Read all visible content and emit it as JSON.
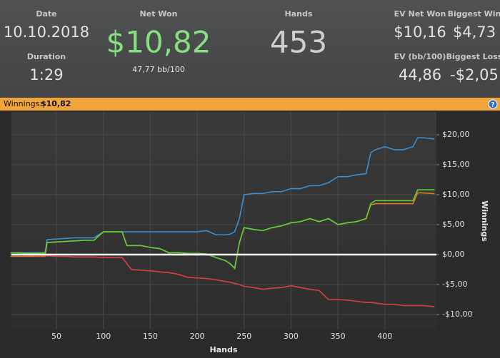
{
  "header": {
    "date": {
      "label": "Date",
      "value": "10.10.2018"
    },
    "duration": {
      "label": "Duration",
      "value": "1:29"
    },
    "net_won": {
      "label": "Net Won",
      "value": "$10,82",
      "sub": "47,77 bb/100"
    },
    "hands": {
      "label": "Hands",
      "value": "453"
    },
    "ev_net_won": {
      "label": "EV Net Won",
      "value": "$10,16"
    },
    "biggest_win": {
      "label": "Biggest Win",
      "value": "$4,73"
    },
    "ev_bb": {
      "label": "EV (bb/100)",
      "value": "44,86"
    },
    "biggest_loss": {
      "label": "Biggest Loss",
      "value": "-$2,05"
    }
  },
  "bar": {
    "label": "Winnings:",
    "value": "$10,82",
    "help": "?"
  },
  "chart_data": {
    "type": "line",
    "xlabel": "Hands",
    "ylabel": "Winnings",
    "xlim": [
      2,
      455
    ],
    "xticks": [
      50,
      100,
      150,
      200,
      250,
      300,
      350,
      400
    ],
    "ylim": [
      -12.5,
      23.8
    ],
    "yticks": [
      {
        "value": 20,
        "label": "$20,00"
      },
      {
        "value": 15,
        "label": "$15,00"
      },
      {
        "value": 10,
        "label": "$10,00"
      },
      {
        "value": 5,
        "label": "$5,00"
      },
      {
        "value": 0,
        "label": "$0,00"
      },
      {
        "value": -5,
        "label": "-$5,00"
      },
      {
        "value": -10,
        "label": "-$10,00"
      }
    ],
    "grid": true,
    "x": [
      1,
      10,
      20,
      30,
      38,
      40,
      50,
      60,
      70,
      80,
      90,
      100,
      110,
      120,
      125,
      130,
      140,
      150,
      160,
      170,
      180,
      190,
      200,
      210,
      220,
      230,
      235,
      240,
      245,
      250,
      260,
      270,
      280,
      290,
      300,
      310,
      320,
      330,
      340,
      350,
      360,
      370,
      380,
      385,
      390,
      400,
      410,
      420,
      430,
      435,
      440,
      453
    ],
    "series": [
      {
        "color": "#3d8fd0",
        "values": [
          0.3,
          0.3,
          0.3,
          0.3,
          0.3,
          2.5,
          2.6,
          2.7,
          2.8,
          2.8,
          2.8,
          3.8,
          3.8,
          3.8,
          3.8,
          3.8,
          3.8,
          3.8,
          3.8,
          3.8,
          3.8,
          3.8,
          3.8,
          4.0,
          3.3,
          3.3,
          3.4,
          3.8,
          6.0,
          10.0,
          10.2,
          10.2,
          10.5,
          10.5,
          11.0,
          11.0,
          11.5,
          11.5,
          12.0,
          13.0,
          13.0,
          13.3,
          13.5,
          17.0,
          17.5,
          18.0,
          17.5,
          17.5,
          18.0,
          19.5,
          19.5,
          19.3
        ]
      },
      {
        "color": "#e07b2a",
        "values": [
          -0.3,
          -0.3,
          -0.3,
          -0.3,
          -0.3,
          2.0,
          2.1,
          2.2,
          2.3,
          2.4,
          2.4,
          3.8,
          3.8,
          3.8,
          1.5,
          1.5,
          1.5,
          1.2,
          1.0,
          0.3,
          0.3,
          0.2,
          0.2,
          0.1,
          -0.5,
          -1.0,
          -1.5,
          -2.3,
          2.0,
          4.5,
          4.2,
          4.0,
          4.5,
          4.8,
          5.3,
          5.5,
          6.0,
          5.5,
          6.0,
          5.0,
          5.3,
          5.5,
          6.0,
          8.3,
          8.5,
          8.5,
          8.5,
          8.5,
          8.5,
          10.3,
          10.3,
          10.16
        ]
      },
      {
        "color": "#5fd03a",
        "values": [
          0.3,
          0.3,
          0.2,
          0.2,
          0.3,
          2.0,
          2.1,
          2.2,
          2.3,
          2.4,
          2.4,
          3.8,
          3.8,
          3.8,
          1.5,
          1.5,
          1.5,
          1.2,
          1.0,
          0.3,
          0.3,
          0.2,
          0.2,
          0.1,
          -0.5,
          -1.0,
          -1.5,
          -2.3,
          2.0,
          4.5,
          4.2,
          4.0,
          4.5,
          4.8,
          5.3,
          5.5,
          6.0,
          5.5,
          6.0,
          5.0,
          5.3,
          5.5,
          6.0,
          8.5,
          9.0,
          9.0,
          9.0,
          9.0,
          9.0,
          10.8,
          10.8,
          10.82
        ]
      },
      {
        "color": "#d9413e",
        "values": [
          0,
          0,
          -0.1,
          -0.2,
          -0.2,
          -0.2,
          -0.3,
          -0.3,
          -0.4,
          -0.4,
          -0.4,
          -0.5,
          -0.5,
          -0.5,
          -1.5,
          -2.5,
          -2.6,
          -2.7,
          -2.9,
          -3.0,
          -3.3,
          -3.8,
          -3.9,
          -4.0,
          -4.2,
          -4.5,
          -4.6,
          -4.8,
          -5.0,
          -5.3,
          -5.5,
          -5.8,
          -5.6,
          -5.5,
          -5.2,
          -5.5,
          -5.8,
          -6.0,
          -7.5,
          -7.5,
          -7.6,
          -7.8,
          -8.0,
          -8.0,
          -8.1,
          -8.3,
          -8.3,
          -8.5,
          -8.5,
          -8.5,
          -8.5,
          -8.7
        ]
      }
    ]
  }
}
